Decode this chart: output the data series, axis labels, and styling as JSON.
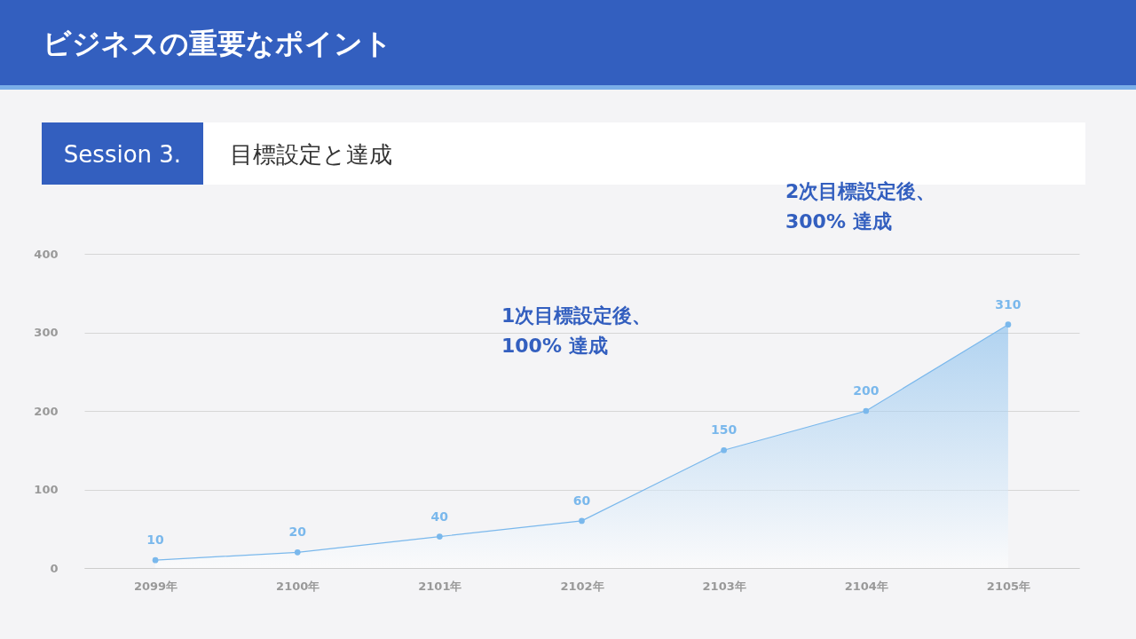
{
  "chart_data": {
    "type": "area",
    "title": "ビジネスの重要なポイント",
    "subtitle": "目標設定と達成",
    "categories": [
      "2099年",
      "2100年",
      "2101年",
      "2102年",
      "2103年",
      "2104年",
      "2105年"
    ],
    "series": [
      {
        "color": "#7ab8ec",
        "values": [
          10,
          20,
          40,
          60,
          150,
          200,
          310
        ]
      }
    ],
    "ylim": [
      0,
      400
    ],
    "yticks": [
      0,
      100,
      200,
      300,
      400
    ],
    "grid": "y",
    "marker": "circle",
    "data_labels": true,
    "annotations": [
      "Session 3.",
      "1次目標設定後、\n100% 達成",
      "2次目標設定後、\n300% 達成"
    ]
  }
}
